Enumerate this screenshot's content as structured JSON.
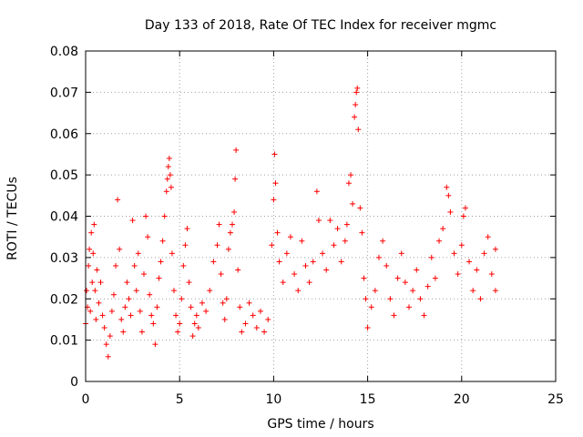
{
  "chart_data": {
    "type": "scatter",
    "title": "Day 133 of 2018, Rate Of TEC Index for receiver mgmc",
    "xlabel": "GPS time / hours",
    "ylabel": "ROTI / TECUs",
    "xlim": [
      0,
      25
    ],
    "ylim": [
      0,
      0.08
    ],
    "x_ticks": [
      "0",
      "5",
      "10",
      "15",
      "20",
      "25"
    ],
    "y_ticks": [
      "0",
      "0.01",
      "0.02",
      "0.03",
      "0.04",
      "0.05",
      "0.06",
      "0.07",
      "0.08"
    ],
    "grid": true,
    "marker": "+",
    "color": "#ff0000",
    "series": [
      {
        "name": "ROTI",
        "points": [
          [
            0.0,
            0.014
          ],
          [
            0.05,
            0.022
          ],
          [
            0.1,
            0.018
          ],
          [
            0.15,
            0.028
          ],
          [
            0.2,
            0.032
          ],
          [
            0.25,
            0.017
          ],
          [
            0.3,
            0.036
          ],
          [
            0.35,
            0.024
          ],
          [
            0.4,
            0.031
          ],
          [
            0.45,
            0.038
          ],
          [
            0.5,
            0.022
          ],
          [
            0.55,
            0.015
          ],
          [
            0.6,
            0.027
          ],
          [
            0.7,
            0.019
          ],
          [
            0.8,
            0.024
          ],
          [
            0.9,
            0.016
          ],
          [
            1.0,
            0.013
          ],
          [
            1.1,
            0.009
          ],
          [
            1.2,
            0.006
          ],
          [
            1.3,
            0.011
          ],
          [
            1.4,
            0.017
          ],
          [
            1.5,
            0.021
          ],
          [
            1.6,
            0.028
          ],
          [
            1.7,
            0.044
          ],
          [
            1.8,
            0.032
          ],
          [
            1.9,
            0.015
          ],
          [
            2.0,
            0.012
          ],
          [
            2.1,
            0.018
          ],
          [
            2.2,
            0.024
          ],
          [
            2.3,
            0.02
          ],
          [
            2.4,
            0.016
          ],
          [
            2.5,
            0.039
          ],
          [
            2.6,
            0.028
          ],
          [
            2.7,
            0.022
          ],
          [
            2.8,
            0.031
          ],
          [
            2.9,
            0.017
          ],
          [
            3.0,
            0.012
          ],
          [
            3.1,
            0.026
          ],
          [
            3.2,
            0.04
          ],
          [
            3.3,
            0.035
          ],
          [
            3.4,
            0.021
          ],
          [
            3.5,
            0.016
          ],
          [
            3.6,
            0.014
          ],
          [
            3.7,
            0.009
          ],
          [
            3.8,
            0.018
          ],
          [
            3.9,
            0.025
          ],
          [
            4.0,
            0.029
          ],
          [
            4.1,
            0.034
          ],
          [
            4.2,
            0.04
          ],
          [
            4.3,
            0.046
          ],
          [
            4.35,
            0.049
          ],
          [
            4.4,
            0.052
          ],
          [
            4.45,
            0.054
          ],
          [
            4.5,
            0.05
          ],
          [
            4.55,
            0.047
          ],
          [
            4.6,
            0.031
          ],
          [
            4.7,
            0.022
          ],
          [
            4.8,
            0.016
          ],
          [
            4.9,
            0.012
          ],
          [
            5.0,
            0.014
          ],
          [
            5.1,
            0.02
          ],
          [
            5.2,
            0.028
          ],
          [
            5.3,
            0.033
          ],
          [
            5.4,
            0.037
          ],
          [
            5.5,
            0.024
          ],
          [
            5.6,
            0.018
          ],
          [
            5.7,
            0.011
          ],
          [
            5.8,
            0.014
          ],
          [
            5.9,
            0.016
          ],
          [
            6.0,
            0.013
          ],
          [
            6.2,
            0.019
          ],
          [
            6.4,
            0.017
          ],
          [
            6.6,
            0.022
          ],
          [
            6.8,
            0.029
          ],
          [
            7.0,
            0.033
          ],
          [
            7.1,
            0.038
          ],
          [
            7.2,
            0.026
          ],
          [
            7.3,
            0.019
          ],
          [
            7.4,
            0.015
          ],
          [
            7.5,
            0.02
          ],
          [
            7.6,
            0.032
          ],
          [
            7.7,
            0.036
          ],
          [
            7.8,
            0.038
          ],
          [
            7.9,
            0.041
          ],
          [
            8.0,
            0.056
          ],
          [
            7.95,
            0.049
          ],
          [
            8.1,
            0.027
          ],
          [
            8.2,
            0.018
          ],
          [
            8.3,
            0.012
          ],
          [
            8.5,
            0.014
          ],
          [
            8.7,
            0.019
          ],
          [
            8.9,
            0.016
          ],
          [
            9.1,
            0.013
          ],
          [
            9.3,
            0.017
          ],
          [
            9.5,
            0.012
          ],
          [
            9.7,
            0.015
          ],
          [
            9.9,
            0.033
          ],
          [
            10.0,
            0.044
          ],
          [
            10.05,
            0.055
          ],
          [
            10.1,
            0.048
          ],
          [
            10.2,
            0.036
          ],
          [
            10.3,
            0.029
          ],
          [
            10.5,
            0.024
          ],
          [
            10.7,
            0.031
          ],
          [
            10.9,
            0.035
          ],
          [
            11.1,
            0.026
          ],
          [
            11.3,
            0.022
          ],
          [
            11.5,
            0.034
          ],
          [
            11.7,
            0.028
          ],
          [
            11.9,
            0.024
          ],
          [
            12.1,
            0.029
          ],
          [
            12.3,
            0.046
          ],
          [
            12.4,
            0.039
          ],
          [
            12.6,
            0.031
          ],
          [
            12.8,
            0.027
          ],
          [
            13.0,
            0.039
          ],
          [
            13.2,
            0.033
          ],
          [
            13.4,
            0.037
          ],
          [
            13.6,
            0.029
          ],
          [
            13.8,
            0.034
          ],
          [
            13.9,
            0.038
          ],
          [
            14.0,
            0.048
          ],
          [
            14.1,
            0.05
          ],
          [
            14.2,
            0.043
          ],
          [
            14.3,
            0.064
          ],
          [
            14.35,
            0.067
          ],
          [
            14.4,
            0.07
          ],
          [
            14.45,
            0.071
          ],
          [
            14.5,
            0.061
          ],
          [
            14.6,
            0.042
          ],
          [
            14.7,
            0.036
          ],
          [
            14.8,
            0.025
          ],
          [
            14.9,
            0.02
          ],
          [
            15.0,
            0.013
          ],
          [
            15.2,
            0.018
          ],
          [
            15.4,
            0.022
          ],
          [
            15.6,
            0.03
          ],
          [
            15.8,
            0.034
          ],
          [
            16.0,
            0.028
          ],
          [
            16.2,
            0.02
          ],
          [
            16.4,
            0.016
          ],
          [
            16.6,
            0.025
          ],
          [
            16.8,
            0.031
          ],
          [
            17.0,
            0.024
          ],
          [
            17.2,
            0.018
          ],
          [
            17.4,
            0.022
          ],
          [
            17.6,
            0.027
          ],
          [
            17.8,
            0.02
          ],
          [
            18.0,
            0.016
          ],
          [
            18.2,
            0.023
          ],
          [
            18.4,
            0.03
          ],
          [
            18.6,
            0.025
          ],
          [
            18.8,
            0.034
          ],
          [
            19.0,
            0.037
          ],
          [
            19.2,
            0.047
          ],
          [
            19.3,
            0.045
          ],
          [
            19.4,
            0.041
          ],
          [
            19.6,
            0.031
          ],
          [
            19.8,
            0.026
          ],
          [
            20.0,
            0.033
          ],
          [
            20.1,
            0.04
          ],
          [
            20.2,
            0.042
          ],
          [
            20.4,
            0.029
          ],
          [
            20.6,
            0.022
          ],
          [
            20.8,
            0.027
          ],
          [
            21.0,
            0.02
          ],
          [
            21.2,
            0.031
          ],
          [
            21.4,
            0.035
          ],
          [
            21.6,
            0.026
          ],
          [
            21.8,
            0.022
          ],
          [
            21.8,
            0.032
          ]
        ]
      }
    ]
  }
}
